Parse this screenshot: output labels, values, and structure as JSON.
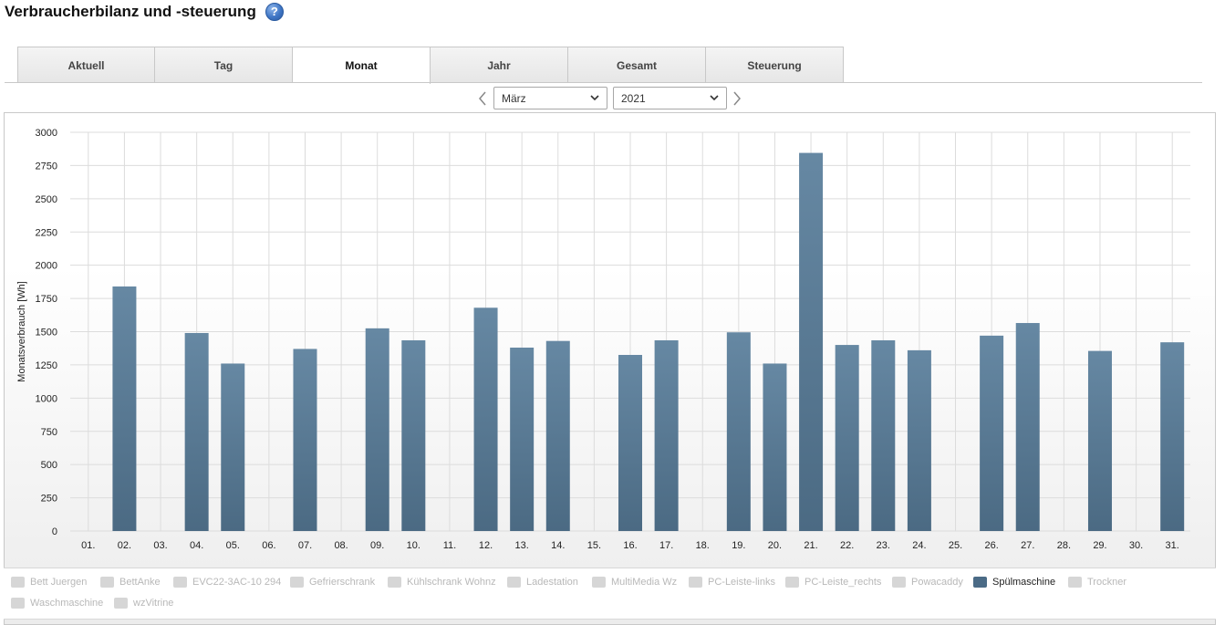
{
  "page": {
    "title": "Verbraucherbilanz und -steuerung",
    "help_icon": "question-icon"
  },
  "tabs": [
    {
      "label": "Aktuell",
      "active": false
    },
    {
      "label": "Tag",
      "active": false
    },
    {
      "label": "Monat",
      "active": true
    },
    {
      "label": "Jahr",
      "active": false
    },
    {
      "label": "Gesamt",
      "active": false
    },
    {
      "label": "Steuerung",
      "active": false
    }
  ],
  "period": {
    "prev_icon": "chevron-left-icon",
    "next_icon": "chevron-right-icon",
    "month": "März",
    "year": "2021"
  },
  "legend": [
    {
      "label": "Bett Juergen",
      "active": false
    },
    {
      "label": "BettAnke",
      "active": false
    },
    {
      "label": "EVC22-3AC-10 294",
      "active": false
    },
    {
      "label": "Gefrierschrank",
      "active": false
    },
    {
      "label": "Kühlschrank Wohnz",
      "active": false
    },
    {
      "label": "Ladestation",
      "active": false
    },
    {
      "label": "MultiMedia Wz",
      "active": false
    },
    {
      "label": "PC-Leiste-links",
      "active": false
    },
    {
      "label": "PC-Leiste_rechts",
      "active": false
    },
    {
      "label": "Powacaddy",
      "active": false
    },
    {
      "label": "Spülmaschine",
      "active": true
    },
    {
      "label": "Trockner",
      "active": false
    },
    {
      "label": "Waschmaschine",
      "active": false
    },
    {
      "label": "wzVitrine",
      "active": false
    }
  ],
  "colors": {
    "bar_top": "#6688a3",
    "bar_bottom": "#4b6a83",
    "grid": "#dcdcdc",
    "text": "#222222"
  },
  "chart_data": {
    "type": "bar",
    "ylabel": "Monatsverbrauch [Wh]",
    "ylim": [
      0,
      3000
    ],
    "yticks": [
      0,
      250,
      500,
      750,
      1000,
      1250,
      1500,
      1750,
      2000,
      2250,
      2500,
      2750,
      3000
    ],
    "grid": true,
    "categories": [
      "01.",
      "02.",
      "03.",
      "04.",
      "05.",
      "06.",
      "07.",
      "08.",
      "09.",
      "10.",
      "11.",
      "12.",
      "13.",
      "14.",
      "15.",
      "16.",
      "17.",
      "18.",
      "19.",
      "20.",
      "21.",
      "22.",
      "23.",
      "24.",
      "25.",
      "26.",
      "27.",
      "28.",
      "29.",
      "30.",
      "31."
    ],
    "series": [
      {
        "name": "Spülmaschine",
        "values": [
          0,
          1840,
          0,
          1490,
          1260,
          0,
          1370,
          0,
          1525,
          1435,
          0,
          1680,
          1380,
          1430,
          0,
          1325,
          1435,
          0,
          1495,
          1260,
          2845,
          1400,
          1435,
          1360,
          0,
          1470,
          1565,
          0,
          1355,
          0,
          1420
        ]
      }
    ]
  }
}
